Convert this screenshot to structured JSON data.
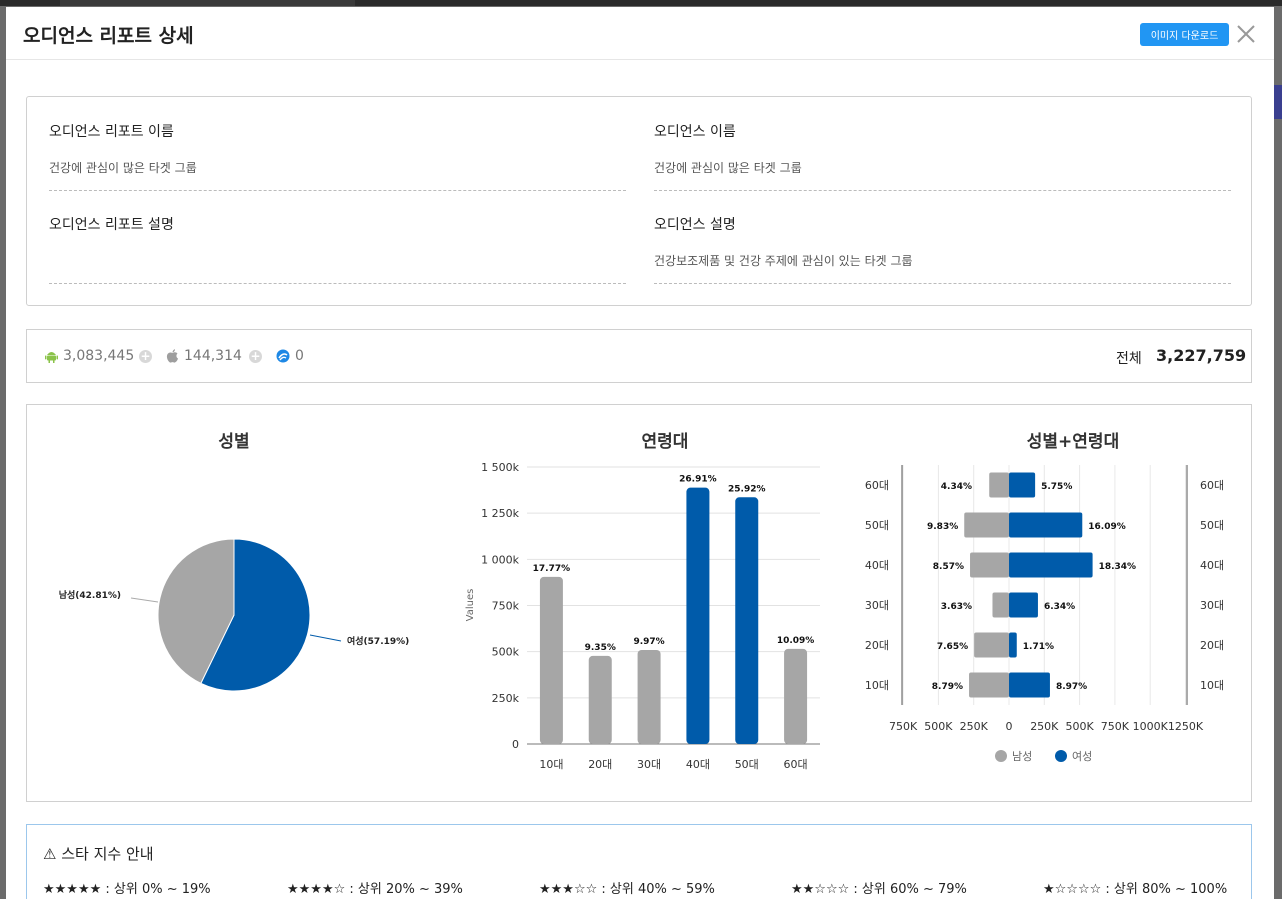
{
  "modal": {
    "title": "오디언스 리포트 상세",
    "download_label": "이미지 다운로드"
  },
  "info": {
    "report_name_label": "오디언스 리포트 이름",
    "report_name_value": "건강에 관심이 많은 타겟 그룹",
    "audience_name_label": "오디언스 이름",
    "audience_name_value": "건강에 관심이 많은 타겟 그룹",
    "report_desc_label": "오디언스 리포트 설명",
    "report_desc_value": "",
    "audience_desc_label": "오디언스 설명",
    "audience_desc_value": "건강보조제품 및 건강 주제에 관심이 있는 타겟 그룹"
  },
  "stats": {
    "android": "3,083,445",
    "ios": "144,314",
    "other": "0",
    "total_label": "전체",
    "total_value": "3,227,759",
    "android_color": "#8bc34a",
    "ios_color": "#9e9e9e",
    "other_color": "#1e88e5"
  },
  "colors": {
    "male": "#a6a6a6",
    "female": "#005baa"
  },
  "chart_data": [
    {
      "type": "pie",
      "title": "성별",
      "labels": [
        "남성(42.81%)",
        "여성(57.19%)"
      ],
      "values": [
        42.81,
        57.19
      ]
    },
    {
      "type": "bar",
      "title": "연령대",
      "ylabel": "Values",
      "ylim": [
        0,
        1500000
      ],
      "yticks": [
        "0",
        "250k",
        "500k",
        "750k",
        "1 000k",
        "1 250k",
        "1 500k"
      ],
      "categories": [
        "10대",
        "20대",
        "30대",
        "40대",
        "50대",
        "60대"
      ],
      "values": [
        905000,
        477000,
        509000,
        1388000,
        1336000,
        515000
      ],
      "labels": [
        "17.77%",
        "9.35%",
        "9.97%",
        "26.91%",
        "25.92%",
        "10.09%"
      ],
      "highlight": [
        false,
        false,
        false,
        true,
        true,
        false
      ]
    },
    {
      "type": "bar",
      "orientation": "horizontal-diverging",
      "title": "성별+연령대",
      "categories": [
        "60대",
        "50대",
        "40대",
        "30대",
        "20대",
        "10대"
      ],
      "xticks": [
        "750K",
        "500K",
        "250K",
        "0",
        "250K",
        "500K",
        "750K",
        "1000K",
        "1250K"
      ],
      "series": [
        {
          "name": "남성",
          "values": [
            140000,
            317000,
            276000,
            117000,
            247000,
            283000
          ],
          "labels": [
            "4.34%",
            "9.83%",
            "8.57%",
            "3.63%",
            "7.65%",
            "8.79%"
          ]
        },
        {
          "name": "여성",
          "values": [
            185000,
            519000,
            592000,
            205000,
            55000,
            290000
          ],
          "labels": [
            "5.75%",
            "16.09%",
            "18.34%",
            "6.34%",
            "1.71%",
            "8.97%"
          ]
        }
      ],
      "legend": "bottom"
    }
  ],
  "star_guide": {
    "title": "스타 지수 안내",
    "items": [
      "★★★★★ : 상위 0% ~ 19%",
      "★★★★☆ : 상위 20% ~ 39%",
      "★★★☆☆ : 상위 40% ~ 59%",
      "★★☆☆☆ : 상위 60% ~ 79%",
      "★☆☆☆☆ : 상위 80% ~ 100%"
    ]
  }
}
